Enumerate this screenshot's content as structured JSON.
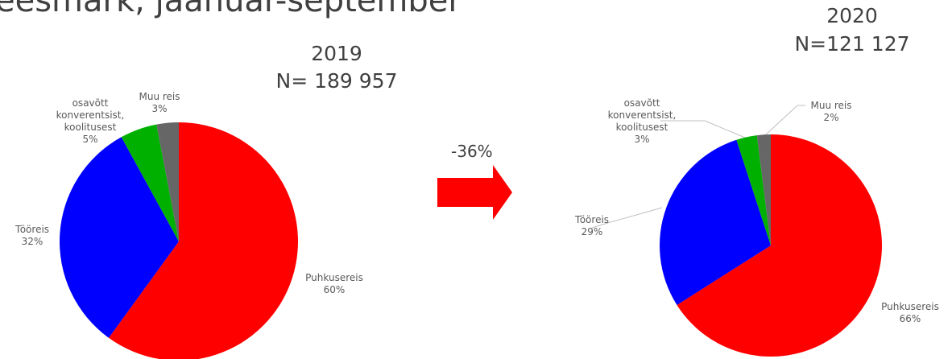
{
  "title": "eesmark, jaanuar-september",
  "annotation": "-36%",
  "chart_data": [
    {
      "type": "pie",
      "title": "2019",
      "subtitle": "N= 189 957",
      "categories": [
        "Puhkusereis",
        "Tööreis",
        "osavõtt konverentsist, koolitusest",
        "Muu reis"
      ],
      "values": [
        60,
        32,
        5,
        3
      ],
      "value_labels": [
        "60%",
        "32%",
        "5%",
        "3%"
      ],
      "colors": [
        "#ff0000",
        "#0000ff",
        "#00b000",
        "#666666"
      ]
    },
    {
      "type": "pie",
      "title": "2020",
      "subtitle": "N=121 127",
      "categories": [
        "Puhkusereis",
        "Tööreis",
        "osavõtt konverentsist, koolitusest",
        "Muu reis"
      ],
      "values": [
        66,
        29,
        3,
        2
      ],
      "value_labels": [
        "66%",
        "29%",
        "3%",
        "2%"
      ],
      "colors": [
        "#ff0000",
        "#0000ff",
        "#00b000",
        "#666666"
      ]
    }
  ]
}
